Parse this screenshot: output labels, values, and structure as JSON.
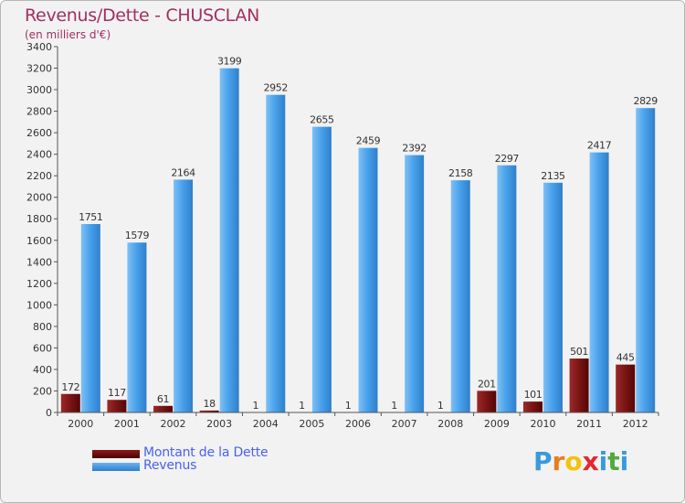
{
  "title": "Revenus/Dette - CHUSCLAN",
  "subtitle": "(en milliers d'€)",
  "colors": {
    "debt": "#7a1010",
    "revenue": "#3d95e0",
    "title": "#a03060",
    "legend_text": "#4a62ee"
  },
  "legend": [
    {
      "label": "Montant de la Dette",
      "color": "#6a0a0a"
    },
    {
      "label": "Revenus",
      "color": "#3d95e0"
    }
  ],
  "logo": {
    "letters": [
      "P",
      "r",
      "o",
      "x",
      "i",
      "t",
      "i"
    ],
    "colors": [
      "#3a9ad9",
      "#e87d1e",
      "#f3c20b",
      "#e4282f",
      "#3a9ad9",
      "#53a93f",
      "#3a9ad9"
    ]
  },
  "chart_data": {
    "type": "bar",
    "title": "Revenus/Dette - CHUSCLAN",
    "ylabel": "(en milliers d'€)",
    "xlabel": "",
    "ylim": [
      0,
      3400
    ],
    "yticks": [
      0,
      200,
      400,
      600,
      800,
      1000,
      1200,
      1400,
      1600,
      1800,
      2000,
      2200,
      2400,
      2600,
      2800,
      3000,
      3200,
      3400
    ],
    "grid": false,
    "legend_position": "bottom-left",
    "categories": [
      "2000",
      "2001",
      "2002",
      "2003",
      "2004",
      "2005",
      "2006",
      "2007",
      "2008",
      "2009",
      "2010",
      "2011",
      "2012"
    ],
    "series": [
      {
        "name": "Montant de la Dette",
        "values": [
          172,
          117,
          61,
          18,
          1,
          1,
          1,
          1,
          1,
          201,
          101,
          501,
          445
        ]
      },
      {
        "name": "Revenus",
        "values": [
          1751,
          1579,
          2164,
          3199,
          2952,
          2655,
          2459,
          2392,
          2158,
          2297,
          2135,
          2417,
          2829
        ]
      }
    ]
  }
}
